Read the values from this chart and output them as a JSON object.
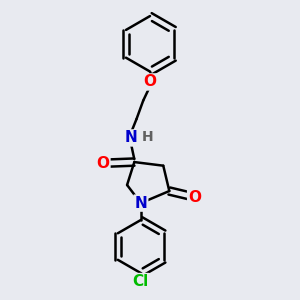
{
  "background_color": "#e8eaf0",
  "bond_color": "#000000",
  "atom_colors": {
    "O": "#ff0000",
    "N": "#0000cc",
    "H": "#606060",
    "Cl": "#00bb00",
    "C": "#000000"
  },
  "bond_width": 1.8,
  "font_size": 11
}
